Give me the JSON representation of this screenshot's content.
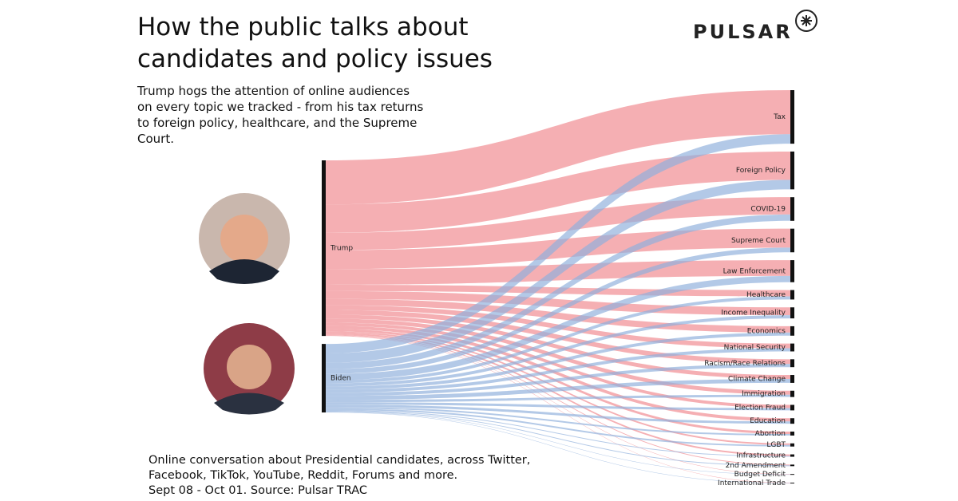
{
  "brand": "PULSAR",
  "chart_data": {
    "type": "sankey",
    "title": "How the public talks about candidates and policy issues",
    "subtitle": "Trump hogs the attention of online audiences on every topic we tracked - from his tax returns to foreign policy, healthcare, and the Supreme Court.",
    "note": "Online conversation about Presidential candidates, across Twitter, Facebook, TikTok, YouTube, Reddit, Forums and more.",
    "source": "Sept 08 - Oct 01. Source: Pulsar TRAC",
    "categories": [
      "Tax",
      "Foreign Policy",
      "COVID-19",
      "Supreme Court",
      "Law Enforcement",
      "Healthcare",
      "Income Inequality",
      "Economics",
      "National Security",
      "Racism/Race Relations",
      "Climate Change",
      "Immigration",
      "Election Fraud",
      "Education",
      "Abortion",
      "LGBT",
      "Infrastructure",
      "2nd Amendment",
      "Budget Deficit",
      "International Trade"
    ],
    "series": [
      {
        "name": "Trump",
        "color": "#f0898f",
        "values": [
          56,
          36,
          22,
          24,
          20,
          8,
          10,
          8,
          6,
          6,
          5,
          5,
          4,
          4,
          3,
          2,
          2,
          1,
          0.5,
          0.5
        ]
      },
      {
        "name": "Biden",
        "color": "#8fb0dc",
        "values": [
          12,
          12,
          8,
          6,
          8,
          4,
          4,
          4,
          4,
          4,
          5,
          3,
          3,
          3,
          2,
          2,
          1,
          1,
          0.5,
          0.5
        ]
      }
    ]
  }
}
